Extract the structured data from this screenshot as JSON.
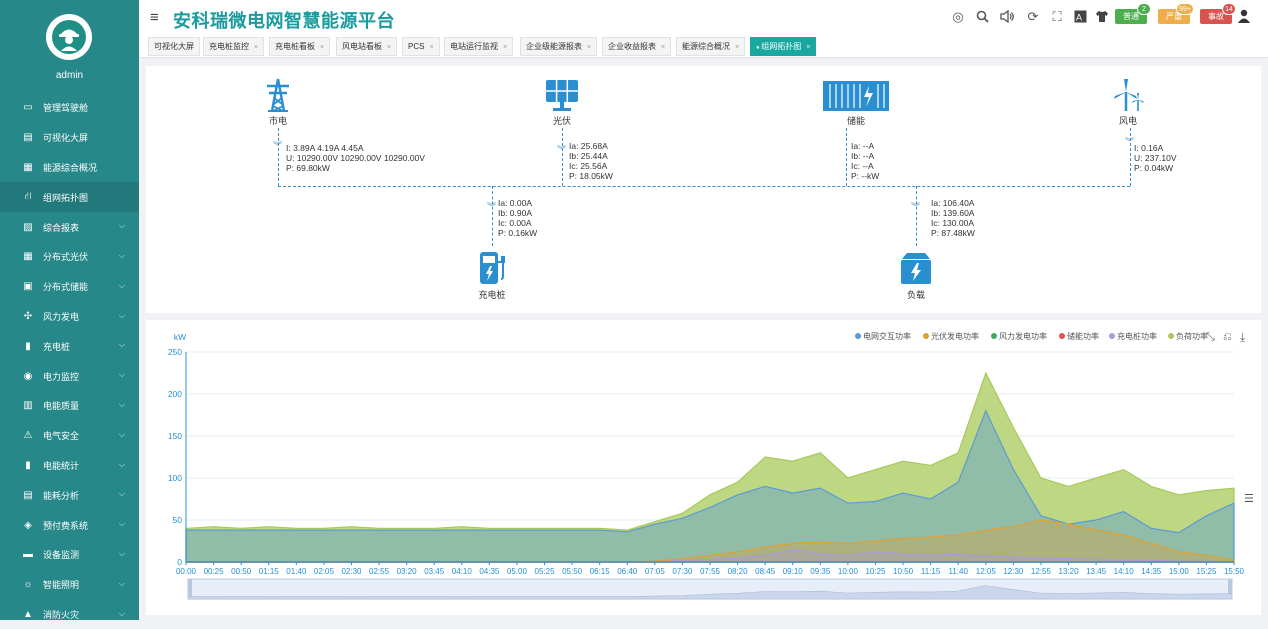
{
  "sidebar": {
    "user": "admin",
    "items": [
      {
        "label": "管理驾驶舱",
        "icon": "monitor-icon",
        "sub": false
      },
      {
        "label": "可视化大屏",
        "icon": "chart-screen-icon",
        "sub": false
      },
      {
        "label": "能源综合概况",
        "icon": "grid-icon",
        "sub": false
      },
      {
        "label": "组网拓扑图",
        "icon": "topology-icon",
        "sub": false,
        "active": true
      },
      {
        "label": "综合报表",
        "icon": "report-icon",
        "sub": true
      },
      {
        "label": "分布式光伏",
        "icon": "solar-grid-icon",
        "sub": true
      },
      {
        "label": "分布式储能",
        "icon": "storage-icon",
        "sub": true
      },
      {
        "label": "风力发电",
        "icon": "wind-icon",
        "sub": true
      },
      {
        "label": "充电桩",
        "icon": "charger-icon",
        "sub": true
      },
      {
        "label": "电力监控",
        "icon": "power-monitor-icon",
        "sub": true
      },
      {
        "label": "电能质量",
        "icon": "quality-icon",
        "sub": true
      },
      {
        "label": "电气安全",
        "icon": "safety-icon",
        "sub": true
      },
      {
        "label": "电能统计",
        "icon": "bar-stats-icon",
        "sub": true
      },
      {
        "label": "能耗分析",
        "icon": "analysis-icon",
        "sub": true
      },
      {
        "label": "预付费系统",
        "icon": "prepaid-icon",
        "sub": true
      },
      {
        "label": "设备监测",
        "icon": "device-icon",
        "sub": true
      },
      {
        "label": "智能照明",
        "icon": "lightbulb-icon",
        "sub": true
      },
      {
        "label": "消防火灾",
        "icon": "fire-icon",
        "sub": true
      }
    ]
  },
  "header": {
    "title": "安科瑞微电网智慧能源平台",
    "badges": [
      {
        "label": "普通",
        "count": "2",
        "color": "#4cae4c"
      },
      {
        "label": "严重",
        "count": "99+",
        "color": "#f0ad4e"
      },
      {
        "label": "事故",
        "count": "14",
        "color": "#d9534f"
      }
    ]
  },
  "tabs": [
    {
      "label": "可视化大屏",
      "closable": false
    },
    {
      "label": "充电桩监控",
      "closable": true
    },
    {
      "label": "充电桩看板",
      "closable": true
    },
    {
      "label": "风电站看板",
      "closable": true
    },
    {
      "label": "PCS",
      "closable": true
    },
    {
      "label": "电站运行监视",
      "closable": true
    },
    {
      "label": "企业级能源报表",
      "closable": true
    },
    {
      "label": "企业收益报表",
      "closable": true
    },
    {
      "label": "能源综合概况",
      "closable": true
    },
    {
      "label": "组网拓扑图",
      "closable": true,
      "active": true
    }
  ],
  "topology": {
    "grid": {
      "name": "市电",
      "lines": [
        "I: 3.89A 4.19A 4.45A",
        "U: 10290.00V 10290.00V 10290.00V",
        "P: 69.80kW"
      ]
    },
    "pv": {
      "name": "光伏",
      "lines": [
        "Ia: 25.68A",
        "Ib: 25.44A",
        "Ic: 25.56A",
        "P: 18.05kW"
      ]
    },
    "storage": {
      "name": "储能",
      "lines": [
        "Ia: --A",
        "Ib: --A",
        "Ic: --A",
        "P: --kW"
      ]
    },
    "wind": {
      "name": "风电",
      "lines": [
        "I: 0.16A",
        "U: 237.10V",
        "P: 0.04kW"
      ]
    },
    "charger": {
      "name": "充电桩",
      "lines": [
        "Ia: 0.00A",
        "Ib: 0.90A",
        "Ic: 0.00A",
        "P: 0.16kW"
      ]
    },
    "load": {
      "name": "负载",
      "lines": [
        "Ia: 106.40A",
        "Ib: 139.60A",
        "Ic: 130.00A",
        "P: 87.48kW"
      ]
    }
  },
  "chart_data": {
    "type": "area",
    "ylabel": "kW",
    "ylim": [
      0,
      250
    ],
    "yticks": [
      0,
      50,
      100,
      150,
      200,
      250
    ],
    "grid": true,
    "legend_position": "top-right",
    "xticks": [
      "00:00",
      "00:25",
      "00:50",
      "01:15",
      "01:40",
      "02:05",
      "02:30",
      "02:55",
      "03:20",
      "03:45",
      "04:10",
      "04:35",
      "05:00",
      "05:25",
      "05:50",
      "06:15",
      "06:40",
      "07:05",
      "07:30",
      "07:55",
      "08:20",
      "08:45",
      "09:10",
      "09:35",
      "10:00",
      "10:25",
      "10:50",
      "11:15",
      "11:40",
      "12:05",
      "12:30",
      "12:55",
      "13:20",
      "13:45",
      "14:10",
      "14:35",
      "15:00",
      "15:25",
      "15:50"
    ],
    "series": [
      {
        "name": "电网交互功率",
        "color": "#5b9bd5",
        "values": [
          38,
          38,
          38,
          38,
          38,
          38,
          38,
          38,
          38,
          38,
          38,
          38,
          38,
          38,
          38,
          38,
          36,
          45,
          52,
          65,
          80,
          90,
          82,
          88,
          70,
          72,
          82,
          75,
          95,
          180,
          110,
          55,
          45,
          50,
          60,
          40,
          35,
          55,
          70
        ]
      },
      {
        "name": "光伏发电功率",
        "color": "#e0a030",
        "values": [
          0,
          0,
          0,
          0,
          0,
          0,
          0,
          0,
          0,
          0,
          0,
          0,
          0,
          0,
          0,
          0,
          0,
          1,
          4,
          8,
          12,
          18,
          22,
          24,
          22,
          25,
          28,
          30,
          32,
          38,
          42,
          50,
          45,
          38,
          32,
          22,
          12,
          8,
          2
        ]
      },
      {
        "name": "风力发电功率",
        "color": "#3aaa5c",
        "values": [
          0,
          0,
          0,
          0,
          0,
          0,
          0,
          0,
          0,
          0,
          0,
          0,
          0,
          0,
          0,
          0,
          0,
          0,
          0,
          0,
          0,
          0,
          0,
          0,
          0,
          0,
          0,
          0,
          0,
          0,
          0,
          0,
          0,
          0,
          0,
          0,
          0,
          0,
          0
        ]
      },
      {
        "name": "储能功率",
        "color": "#e0534f",
        "values": [
          0,
          0,
          0,
          0,
          0,
          0,
          0,
          0,
          0,
          0,
          0,
          0,
          0,
          0,
          0,
          0,
          0,
          0,
          0,
          0,
          0,
          0,
          0,
          0,
          0,
          0,
          0,
          0,
          0,
          0,
          0,
          0,
          0,
          0,
          0,
          0,
          0,
          0,
          0
        ]
      },
      {
        "name": "充电桩功率",
        "color": "#a89bd8",
        "values": [
          0,
          0,
          0,
          0,
          0,
          0,
          0,
          0,
          0,
          0,
          0,
          0,
          0,
          0,
          0,
          0,
          0,
          0,
          2,
          3,
          5,
          8,
          15,
          10,
          8,
          12,
          10,
          8,
          9,
          7,
          6,
          5,
          4,
          3,
          2,
          2,
          1,
          1,
          0
        ]
      },
      {
        "name": "负荷功率",
        "color": "#a8c95a",
        "values": [
          40,
          42,
          40,
          42,
          40,
          40,
          42,
          40,
          40,
          40,
          42,
          40,
          40,
          40,
          40,
          40,
          38,
          48,
          58,
          80,
          95,
          125,
          120,
          130,
          100,
          110,
          120,
          115,
          130,
          225,
          160,
          100,
          90,
          100,
          110,
          90,
          80,
          85,
          88
        ]
      }
    ]
  }
}
